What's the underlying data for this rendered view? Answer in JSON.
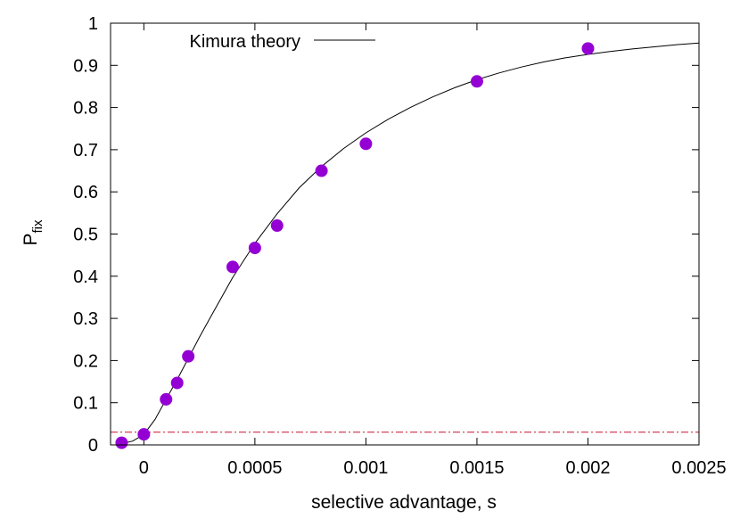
{
  "chart_data": {
    "type": "scatter",
    "title": "",
    "xlabel": "selective advantage, s",
    "ylabel": {
      "main": "P",
      "sub": "fix"
    },
    "xlim": [
      -0.00015,
      0.0025
    ],
    "ylim": [
      0,
      1
    ],
    "xticks": [
      0,
      0.0005,
      0.001,
      0.0015,
      0.002,
      0.0025
    ],
    "xtick_labels": [
      "0",
      "0.0005",
      "0.001",
      "0.0015",
      "0.002",
      "0.0025"
    ],
    "yticks": [
      0,
      0.1,
      0.2,
      0.3,
      0.4,
      0.5,
      0.6,
      0.7,
      0.8,
      0.9,
      1
    ],
    "ytick_labels": [
      "0",
      "0.1",
      "0.2",
      "0.3",
      "0.4",
      "0.5",
      "0.6",
      "0.7",
      "0.8",
      "0.9",
      "1"
    ],
    "grid": false,
    "legend_position": "top-left",
    "series": [
      {
        "kind": "points",
        "color": "#9400d3",
        "x": [
          -0.0001,
          0.0,
          0.0001,
          0.00015,
          0.0002,
          0.0004,
          0.0005,
          0.0006,
          0.0008,
          0.001,
          0.0015,
          0.002
        ],
        "y": [
          0.005,
          0.025,
          0.108,
          0.147,
          0.21,
          0.422,
          0.467,
          0.52,
          0.65,
          0.714,
          0.862,
          0.94
        ]
      },
      {
        "kind": "curve",
        "name": "Kimura theory",
        "color": "#000000",
        "x": [
          -0.0001,
          -5e-05,
          0.0,
          5e-05,
          0.0001,
          0.00015,
          0.0002,
          0.00025,
          0.0003,
          0.0004,
          0.0005,
          0.0006,
          0.0007,
          0.0008,
          0.0009,
          0.001,
          0.0011,
          0.0012,
          0.0013,
          0.0014,
          0.0015,
          0.0016,
          0.0017,
          0.0018,
          0.0019,
          0.002,
          0.0021,
          0.0022,
          0.0023,
          0.0024,
          0.0025
        ],
        "y": [
          0.003,
          0.009,
          0.025,
          0.06,
          0.108,
          0.155,
          0.205,
          0.255,
          0.303,
          0.397,
          0.478,
          0.548,
          0.61,
          0.66,
          0.703,
          0.74,
          0.772,
          0.8,
          0.825,
          0.847,
          0.866,
          0.882,
          0.896,
          0.908,
          0.918,
          0.926,
          0.933,
          0.939,
          0.944,
          0.949,
          0.953
        ]
      },
      {
        "kind": "reference-line",
        "color": "#c8102e",
        "y": 0.03
      }
    ]
  }
}
